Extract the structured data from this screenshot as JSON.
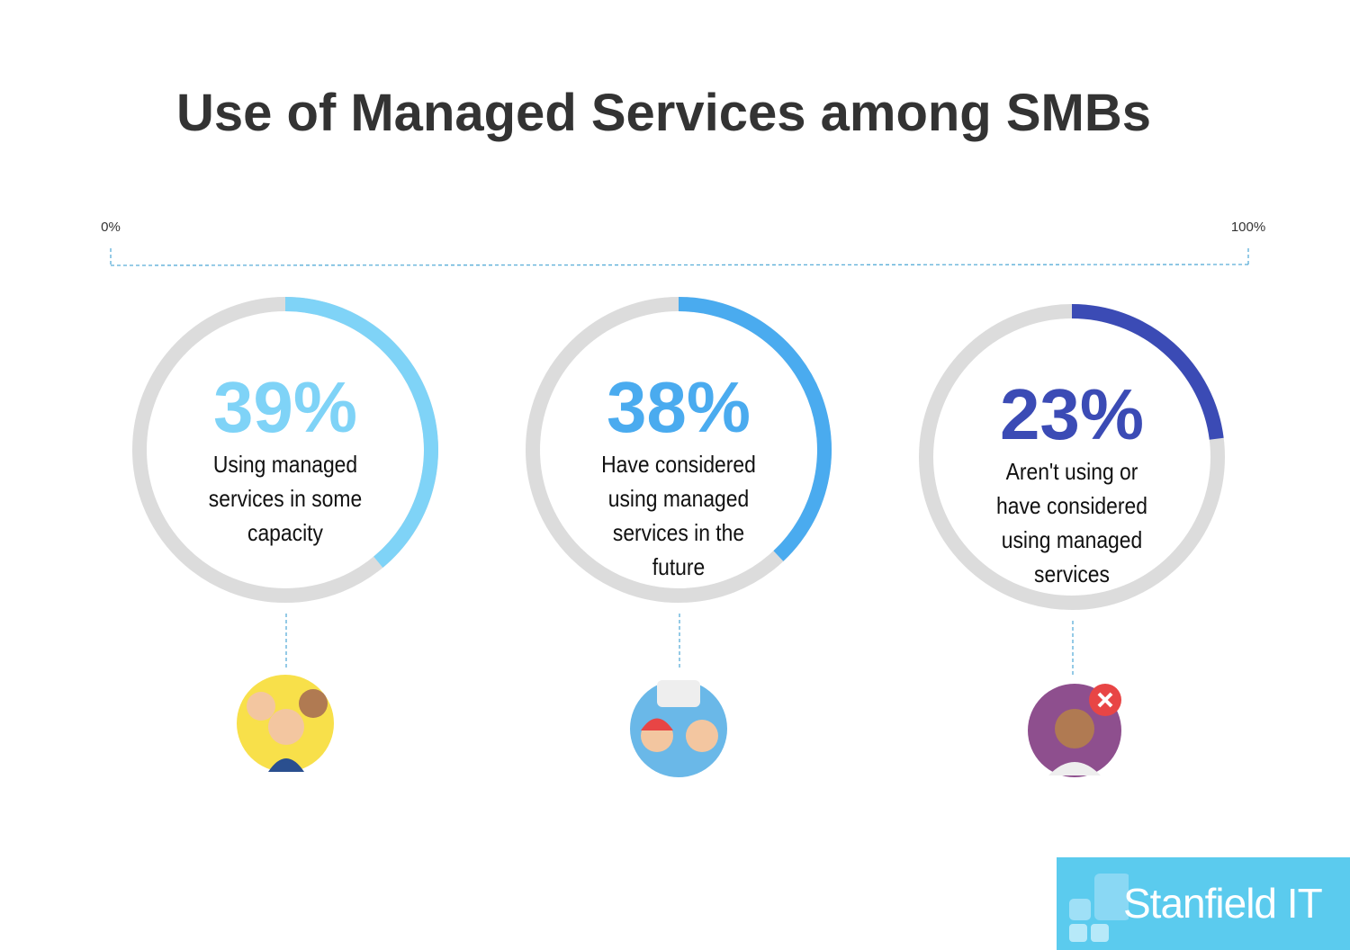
{
  "chart_data": {
    "type": "donut",
    "title": "Use of Managed Services among SMBs",
    "categories": [
      "Using managed services in some capacity",
      "Have considered using managed services in the future",
      "Aren't using or have considered using managed services"
    ],
    "values": [
      39,
      38,
      23
    ],
    "value_labels": [
      "39%",
      "38%",
      "23%"
    ],
    "colors": [
      "#7fd3f7",
      "#4aabef",
      "#3b4bb5"
    ],
    "track_color": "#dcdcdc",
    "xlim": [
      0,
      100
    ],
    "xticks": [
      {
        "value": 0,
        "label": "0%"
      },
      {
        "value": 100,
        "label": "100%"
      }
    ]
  },
  "logo": "Stanfield IT"
}
